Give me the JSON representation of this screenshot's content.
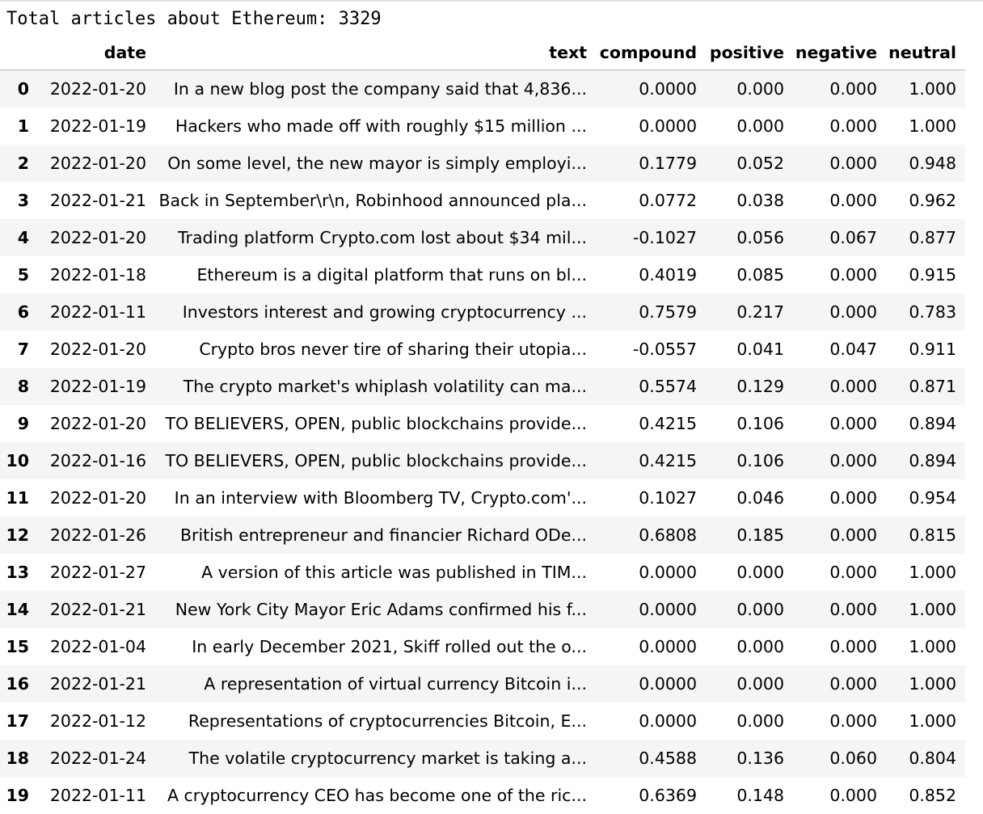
{
  "output": {
    "summary": "Total articles about Ethereum: 3329"
  },
  "table": {
    "columns": [
      "",
      "date",
      "text",
      "compound",
      "positive",
      "negative",
      "neutral"
    ],
    "rows": [
      {
        "index": "0",
        "date": "2022-01-20",
        "text": "In a new blog post the company said that 4,836...",
        "compound": "0.0000",
        "positive": "0.000",
        "negative": "0.000",
        "neutral": "1.000"
      },
      {
        "index": "1",
        "date": "2022-01-19",
        "text": "Hackers who made off with roughly $15 million ...",
        "compound": "0.0000",
        "positive": "0.000",
        "negative": "0.000",
        "neutral": "1.000"
      },
      {
        "index": "2",
        "date": "2022-01-20",
        "text": "On some level, the new mayor is simply employi...",
        "compound": "0.1779",
        "positive": "0.052",
        "negative": "0.000",
        "neutral": "0.948"
      },
      {
        "index": "3",
        "date": "2022-01-21",
        "text": "Back in September\\r\\n, Robinhood announced pla...",
        "compound": "0.0772",
        "positive": "0.038",
        "negative": "0.000",
        "neutral": "0.962"
      },
      {
        "index": "4",
        "date": "2022-01-20",
        "text": "Trading platform Crypto.com lost about $34 mil...",
        "compound": "-0.1027",
        "positive": "0.056",
        "negative": "0.067",
        "neutral": "0.877"
      },
      {
        "index": "5",
        "date": "2022-01-18",
        "text": "Ethereum is a digital platform that runs on bl...",
        "compound": "0.4019",
        "positive": "0.085",
        "negative": "0.000",
        "neutral": "0.915"
      },
      {
        "index": "6",
        "date": "2022-01-11",
        "text": "Investors interest and growing cryptocurrency ...",
        "compound": "0.7579",
        "positive": "0.217",
        "negative": "0.000",
        "neutral": "0.783"
      },
      {
        "index": "7",
        "date": "2022-01-20",
        "text": "Crypto bros never tire of sharing their utopia...",
        "compound": "-0.0557",
        "positive": "0.041",
        "negative": "0.047",
        "neutral": "0.911"
      },
      {
        "index": "8",
        "date": "2022-01-19",
        "text": "The crypto market's whiplash volatility can ma...",
        "compound": "0.5574",
        "positive": "0.129",
        "negative": "0.000",
        "neutral": "0.871"
      },
      {
        "index": "9",
        "date": "2022-01-20",
        "text": "TO BELIEVERS, OPEN, public blockchains provide...",
        "compound": "0.4215",
        "positive": "0.106",
        "negative": "0.000",
        "neutral": "0.894"
      },
      {
        "index": "10",
        "date": "2022-01-16",
        "text": "TO BELIEVERS, OPEN, public blockchains provide...",
        "compound": "0.4215",
        "positive": "0.106",
        "negative": "0.000",
        "neutral": "0.894"
      },
      {
        "index": "11",
        "date": "2022-01-20",
        "text": "In an interview with Bloomberg TV, Crypto.com'...",
        "compound": "0.1027",
        "positive": "0.046",
        "negative": "0.000",
        "neutral": "0.954"
      },
      {
        "index": "12",
        "date": "2022-01-26",
        "text": "British entrepreneur and financier Richard ODe...",
        "compound": "0.6808",
        "positive": "0.185",
        "negative": "0.000",
        "neutral": "0.815"
      },
      {
        "index": "13",
        "date": "2022-01-27",
        "text": "A version of this article was published in TIM...",
        "compound": "0.0000",
        "positive": "0.000",
        "negative": "0.000",
        "neutral": "1.000"
      },
      {
        "index": "14",
        "date": "2022-01-21",
        "text": "New York City Mayor Eric Adams confirmed his f...",
        "compound": "0.0000",
        "positive": "0.000",
        "negative": "0.000",
        "neutral": "1.000"
      },
      {
        "index": "15",
        "date": "2022-01-04",
        "text": "In early December 2021, Skiff rolled out the o...",
        "compound": "0.0000",
        "positive": "0.000",
        "negative": "0.000",
        "neutral": "1.000"
      },
      {
        "index": "16",
        "date": "2022-01-21",
        "text": "A representation of virtual currency Bitcoin i...",
        "compound": "0.0000",
        "positive": "0.000",
        "negative": "0.000",
        "neutral": "1.000"
      },
      {
        "index": "17",
        "date": "2022-01-12",
        "text": "Representations of cryptocurrencies Bitcoin, E...",
        "compound": "0.0000",
        "positive": "0.000",
        "negative": "0.000",
        "neutral": "1.000"
      },
      {
        "index": "18",
        "date": "2022-01-24",
        "text": "The volatile cryptocurrency market is taking a...",
        "compound": "0.4588",
        "positive": "0.136",
        "negative": "0.060",
        "neutral": "0.804"
      },
      {
        "index": "19",
        "date": "2022-01-11",
        "text": "A cryptocurrency CEO has become one of the ric...",
        "compound": "0.6369",
        "positive": "0.148",
        "negative": "0.000",
        "neutral": "0.852"
      }
    ]
  }
}
